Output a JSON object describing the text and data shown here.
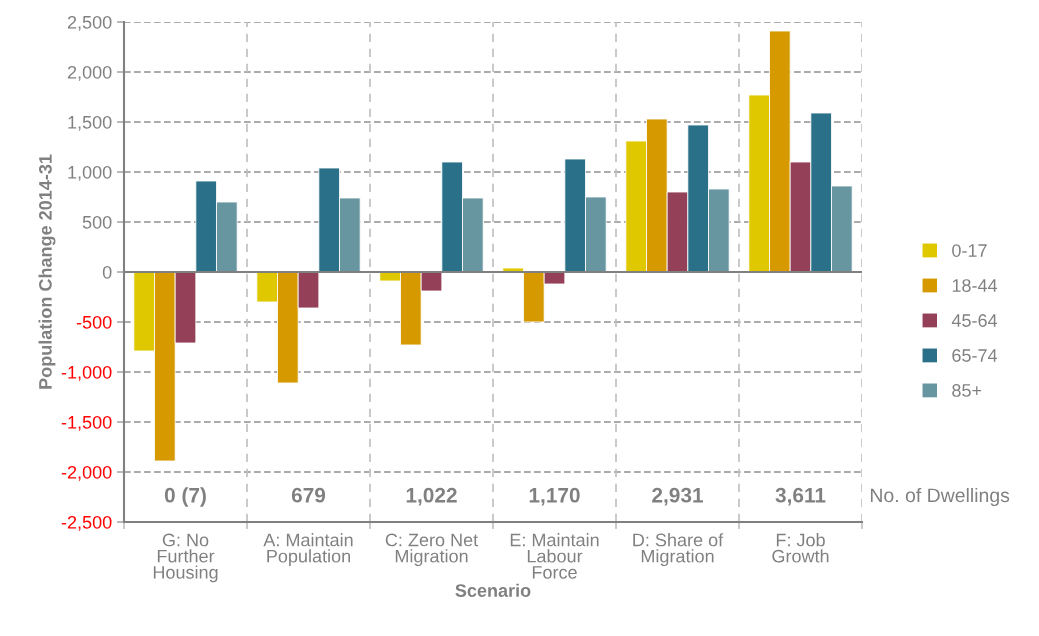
{
  "chart_data": {
    "type": "bar",
    "xlabel": "Scenario",
    "ylabel": "Population Change 2014-31",
    "categories": [
      "G: No\nFurther\nHousing",
      "A: Maintain\nPopulation",
      "C: Zero Net\nMigration",
      "E: Maintain\nLabour\nForce",
      "D: Share of\nMigration",
      "F: Job\nGrowth"
    ],
    "series": [
      {
        "name": "0-17",
        "color": "#dfc800",
        "values": [
          -790,
          -300,
          -90,
          40,
          1310,
          1770
        ]
      },
      {
        "name": "18-44",
        "color": "#d69a00",
        "values": [
          -1890,
          -1110,
          -730,
          -500,
          1530,
          2410
        ]
      },
      {
        "name": "45-64",
        "color": "#944058",
        "values": [
          -710,
          -360,
          -190,
          -120,
          800,
          1100
        ]
      },
      {
        "name": "65-74",
        "color": "#2a7088",
        "values": [
          910,
          1040,
          1100,
          1130,
          1470,
          1590
        ]
      },
      {
        "name": "85+",
        "color": "#6795a0",
        "values": [
          700,
          740,
          740,
          750,
          830,
          860
        ]
      }
    ],
    "ylim": [
      -2500,
      2500
    ],
    "yticks": [
      {
        "value": -2500,
        "label": "-2,500"
      },
      {
        "value": -2000,
        "label": "-2,000"
      },
      {
        "value": -1500,
        "label": "-1,500"
      },
      {
        "value": -1000,
        "label": "-1,000"
      },
      {
        "value": -500,
        "label": "-500"
      },
      0,
      500,
      {
        "value": 1000,
        "label": "1,000"
      },
      {
        "value": 1500,
        "label": "1,500"
      },
      {
        "value": 2000,
        "label": "2,000"
      },
      {
        "value": 2500,
        "label": "2,500"
      }
    ],
    "grid": true,
    "legend": "right",
    "annotations": [
      "0 (7)",
      "679",
      "1,022",
      "1,170",
      "2,931",
      "3,611",
      "No. of Dwellings"
    ]
  }
}
